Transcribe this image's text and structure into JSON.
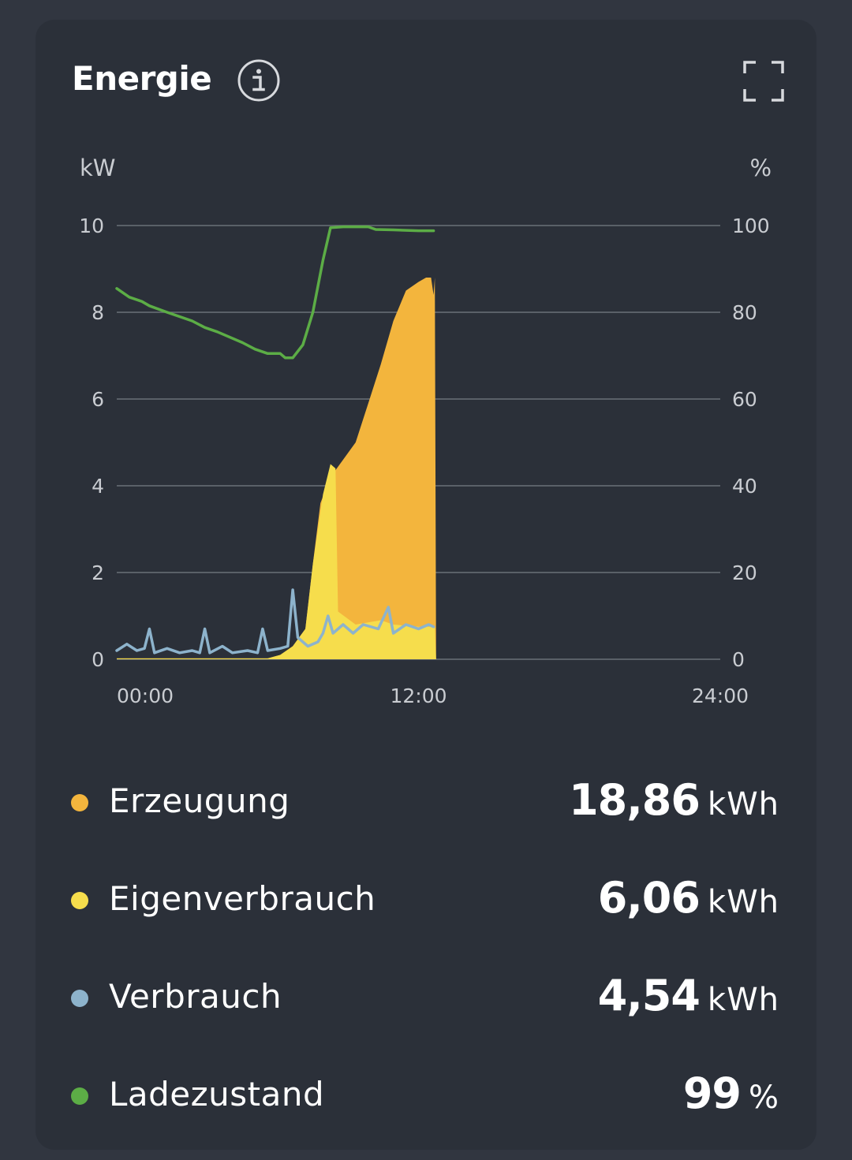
{
  "card": {
    "title": "Energie",
    "icons": {
      "info": "info-circle-icon",
      "expand": "fullscreen-icon"
    }
  },
  "chart_data": {
    "type": "area",
    "left_axis_label": "kW",
    "right_axis_label": "%",
    "ylim_left": [
      0,
      10
    ],
    "ylim_right": [
      0,
      100
    ],
    "y_ticks_left": [
      "0",
      "2",
      "4",
      "6",
      "8",
      "10"
    ],
    "y_ticks_right": [
      "0",
      "20",
      "40",
      "60",
      "80",
      "100"
    ],
    "x_ticks": [
      "00:00",
      "12:00",
      "24:00"
    ],
    "xlim_hours": [
      0,
      24
    ],
    "grid": true,
    "series": [
      {
        "name": "Erzeugung",
        "kind": "area",
        "axis": "left",
        "color": "#f3b53d",
        "points": [
          [
            0,
            0.02
          ],
          [
            6.0,
            0.02
          ],
          [
            6.5,
            0.1
          ],
          [
            7.0,
            0.3
          ],
          [
            7.5,
            0.7
          ],
          [
            7.8,
            2.2
          ],
          [
            8.1,
            3.6
          ],
          [
            8.5,
            4.2
          ],
          [
            9.0,
            4.6
          ],
          [
            9.5,
            5.0
          ],
          [
            10.0,
            5.9
          ],
          [
            10.5,
            6.8
          ],
          [
            11.0,
            7.8
          ],
          [
            11.5,
            8.5
          ],
          [
            12.0,
            8.7
          ],
          [
            12.3,
            8.8
          ],
          [
            12.5,
            8.8
          ],
          [
            12.6,
            8.4
          ],
          [
            12.65,
            8.8
          ],
          [
            12.7,
            0
          ]
        ]
      },
      {
        "name": "Eigenverbrauch",
        "kind": "area",
        "axis": "left",
        "color": "#f6dd4c",
        "points": [
          [
            0,
            0.02
          ],
          [
            6.0,
            0.02
          ],
          [
            6.5,
            0.1
          ],
          [
            7.0,
            0.3
          ],
          [
            7.5,
            0.7
          ],
          [
            7.8,
            2.2
          ],
          [
            8.2,
            3.8
          ],
          [
            8.5,
            4.5
          ],
          [
            8.7,
            4.4
          ],
          [
            8.8,
            1.1
          ],
          [
            9.5,
            0.8
          ],
          [
            10.5,
            0.9
          ],
          [
            11.0,
            0.8
          ],
          [
            12.0,
            0.75
          ],
          [
            12.65,
            0.75
          ],
          [
            12.7,
            0
          ]
        ]
      },
      {
        "name": "Verbrauch",
        "kind": "line",
        "axis": "left",
        "color": "#8db3cc",
        "points": [
          [
            0,
            0.2
          ],
          [
            0.4,
            0.35
          ],
          [
            0.8,
            0.2
          ],
          [
            1.1,
            0.25
          ],
          [
            1.3,
            0.7
          ],
          [
            1.5,
            0.15
          ],
          [
            2.0,
            0.25
          ],
          [
            2.5,
            0.15
          ],
          [
            3.0,
            0.2
          ],
          [
            3.3,
            0.15
          ],
          [
            3.5,
            0.7
          ],
          [
            3.7,
            0.15
          ],
          [
            4.2,
            0.3
          ],
          [
            4.6,
            0.15
          ],
          [
            5.2,
            0.2
          ],
          [
            5.6,
            0.15
          ],
          [
            5.8,
            0.7
          ],
          [
            6.0,
            0.2
          ],
          [
            6.5,
            0.25
          ],
          [
            6.8,
            0.3
          ],
          [
            7.0,
            1.6
          ],
          [
            7.2,
            0.5
          ],
          [
            7.6,
            0.3
          ],
          [
            8.0,
            0.4
          ],
          [
            8.2,
            0.6
          ],
          [
            8.4,
            1.0
          ],
          [
            8.6,
            0.6
          ],
          [
            9.0,
            0.8
          ],
          [
            9.4,
            0.6
          ],
          [
            9.8,
            0.8
          ],
          [
            10.4,
            0.7
          ],
          [
            10.8,
            1.2
          ],
          [
            11.0,
            0.6
          ],
          [
            11.5,
            0.8
          ],
          [
            12.0,
            0.7
          ],
          [
            12.4,
            0.8
          ],
          [
            12.6,
            0.75
          ]
        ]
      },
      {
        "name": "Ladezustand",
        "kind": "line",
        "axis": "right",
        "color": "#5cad46",
        "points": [
          [
            0,
            85.5
          ],
          [
            0.5,
            83.5
          ],
          [
            1.0,
            82.5
          ],
          [
            1.3,
            81.5
          ],
          [
            2.0,
            80
          ],
          [
            3.0,
            78
          ],
          [
            3.5,
            76.5
          ],
          [
            4.0,
            75.5
          ],
          [
            5.0,
            73
          ],
          [
            5.5,
            71.5
          ],
          [
            6.0,
            70.5
          ],
          [
            6.5,
            70.5
          ],
          [
            6.7,
            69.5
          ],
          [
            7.0,
            69.5
          ],
          [
            7.4,
            72.5
          ],
          [
            7.8,
            80
          ],
          [
            8.2,
            92
          ],
          [
            8.5,
            99.5
          ],
          [
            9.0,
            99.7
          ],
          [
            10.0,
            99.7
          ],
          [
            10.3,
            99.1
          ],
          [
            11.0,
            99.0
          ],
          [
            12.0,
            98.8
          ],
          [
            12.6,
            98.8
          ]
        ]
      }
    ]
  },
  "legend": [
    {
      "label": "Erzeugung",
      "value": "18,86",
      "unit": "kWh",
      "color": "#f3b53d"
    },
    {
      "label": "Eigenverbrauch",
      "value": "6,06",
      "unit": "kWh",
      "color": "#f6dd4c"
    },
    {
      "label": "Verbrauch",
      "value": "4,54",
      "unit": "kWh",
      "color": "#8db3cc"
    },
    {
      "label": "Ladezustand",
      "value": "99",
      "unit": "%",
      "color": "#5cad46"
    }
  ]
}
